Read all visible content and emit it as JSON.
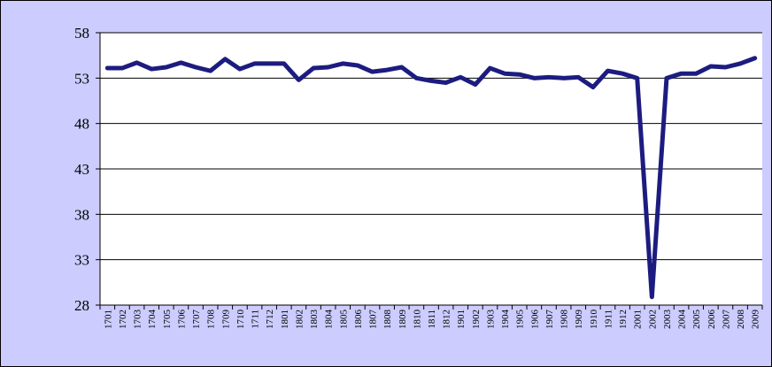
{
  "chart_data": {
    "type": "line",
    "title": "",
    "xlabel": "",
    "ylabel": "",
    "ylim": [
      28,
      58
    ],
    "yticks": [
      28,
      33,
      38,
      43,
      48,
      53,
      58
    ],
    "grid": true,
    "legend": "none",
    "colors": {
      "line": "#1c1c80",
      "background": "#ccccff",
      "plot_area": "#ffffff",
      "grid": "#000000"
    },
    "categories": [
      "1701",
      "1702",
      "1703",
      "1704",
      "1705",
      "1706",
      "1707",
      "1708",
      "1709",
      "1710",
      "1711",
      "1712",
      "1801",
      "1802",
      "1803",
      "1804",
      "1805",
      "1806",
      "1807",
      "1808",
      "1809",
      "1810",
      "1811",
      "1812",
      "1901",
      "1902",
      "1903",
      "1904",
      "1905",
      "1906",
      "1907",
      "1908",
      "1909",
      "1910",
      "1911",
      "1912",
      "2001",
      "2002",
      "2003",
      "2004",
      "2005",
      "2006",
      "2007",
      "2008",
      "2009"
    ],
    "series": [
      {
        "values": [
          54.1,
          54.1,
          54.7,
          54.0,
          54.2,
          54.7,
          54.2,
          53.8,
          55.1,
          54.0,
          54.6,
          54.6,
          54.6,
          52.8,
          54.1,
          54.2,
          54.6,
          54.4,
          53.7,
          53.9,
          54.2,
          53.0,
          52.7,
          52.5,
          53.1,
          52.3,
          54.1,
          53.5,
          53.4,
          53.0,
          53.1,
          53.0,
          53.1,
          52.0,
          53.8,
          53.5,
          53.0,
          28.9,
          53.0,
          53.5,
          53.5,
          54.3,
          54.2,
          54.6,
          55.2
        ]
      }
    ]
  }
}
